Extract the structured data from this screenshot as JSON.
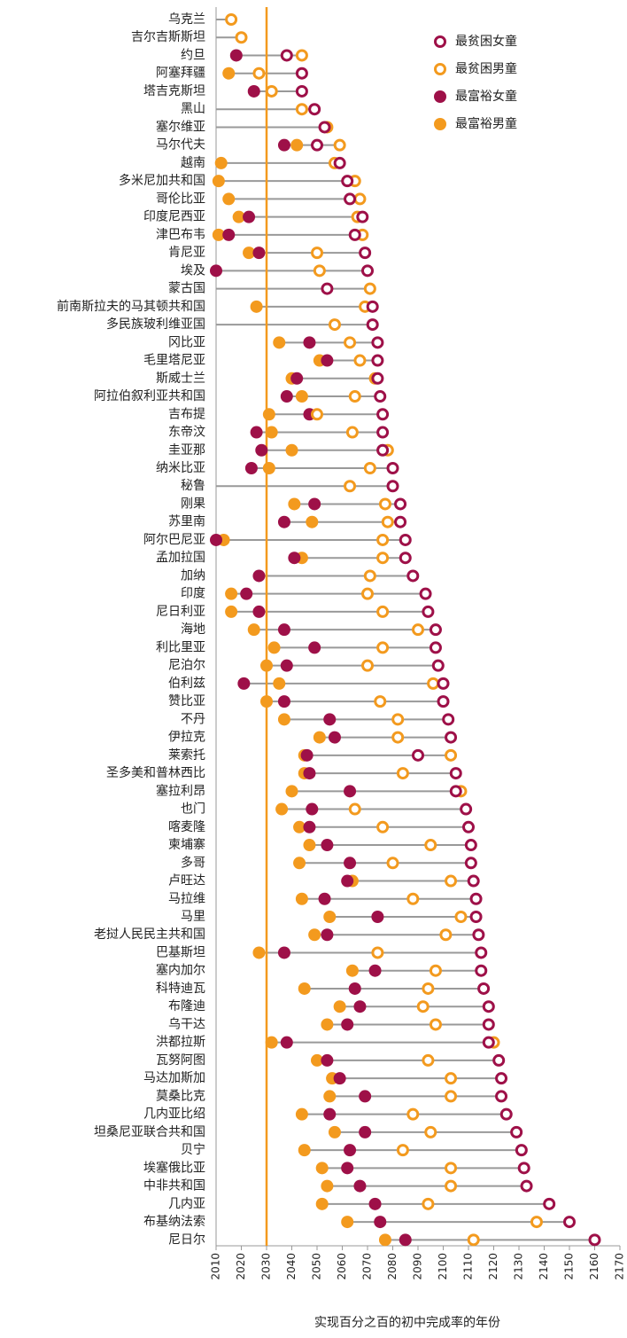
{
  "chart_data": {
    "type": "dot",
    "x_label": "实现百分之百的初中完成率的年份",
    "categories": [
      "乌克兰",
      "吉尔吉斯斯坦",
      "约旦",
      "阿塞拜疆",
      "塔吉克斯坦",
      "黑山",
      "塞尔维亚",
      "马尔代夫",
      "越南",
      "多米尼加共和国",
      "哥伦比亚",
      "印度尼西亚",
      "津巴布韦",
      "肯尼亚",
      "埃及",
      "蒙古国",
      "前南斯拉夫的马其顿共和国",
      "多民族玻利维亚国",
      "冈比亚",
      "毛里塔尼亚",
      "斯威士兰",
      "阿拉伯叙利亚共和国",
      "吉布提",
      "东帝汶",
      "圭亚那",
      "纳米比亚",
      "秘鲁",
      "刚果",
      "苏里南",
      "阿尔巴尼亚",
      "孟加拉国",
      "加纳",
      "印度",
      "尼日利亚",
      "海地",
      "利比里亚",
      "尼泊尔",
      "伯利兹",
      "赞比亚",
      "不丹",
      "伊拉克",
      "莱索托",
      "圣多美和普林西比",
      "塞拉利昂",
      "也门",
      "喀麦隆",
      "柬埔寨",
      "多哥",
      "卢旺达",
      "马拉维",
      "马里",
      "老挝人民民主共和国",
      "巴基斯坦",
      "塞内加尔",
      "科特迪瓦",
      "布隆迪",
      "乌干达",
      "洪都拉斯",
      "瓦努阿图",
      "马达加斯加",
      "莫桑比克",
      "几内亚比绍",
      "坦桑尼亚联合共和国",
      "贝宁",
      "埃塞俄比亚",
      "中非共和国",
      "几内亚",
      "布基纳法索",
      "尼日尔"
    ],
    "series": [
      {
        "name": "最贫困女童",
        "color": "#9e1048",
        "marker": "hollow",
        "values": [
          null,
          null,
          2038,
          2044,
          2044,
          2049,
          2053,
          2050,
          2059,
          2062,
          2063,
          2068,
          2065,
          2069,
          2070,
          2054,
          2072,
          2072,
          2074,
          2074,
          2074,
          2075,
          2076,
          2076,
          2076,
          2080,
          2080,
          2083,
          2083,
          2085,
          2085,
          2088,
          2093,
          2094,
          2097,
          2097,
          2098,
          2100,
          2100,
          2102,
          2103,
          2090,
          2105,
          2105,
          2109,
          2110,
          2111,
          2111,
          2112,
          2113,
          2113,
          2114,
          2115,
          2115,
          2116,
          2118,
          2118,
          2118,
          2122,
          2123,
          2123,
          2125,
          2129,
          2131,
          2132,
          2133,
          2142,
          2150,
          2160
        ]
      },
      {
        "name": "最贫困男童",
        "color": "#f39a1e",
        "marker": "hollow",
        "values": [
          2016,
          2020,
          2044,
          2027,
          2032,
          2044,
          2054,
          2059,
          2057,
          2065,
          2067,
          2066,
          2068,
          2050,
          2051,
          2071,
          2069,
          2057,
          2063,
          2067,
          2073,
          2065,
          2050,
          2064,
          2078,
          2071,
          2063,
          2077,
          2078,
          2076,
          2076,
          2071,
          2070,
          2076,
          2090,
          2076,
          2070,
          2096,
          2075,
          2082,
          2082,
          2103,
          2084,
          2107,
          2065,
          2076,
          2095,
          2080,
          2103,
          2088,
          2107,
          2101,
          2074,
          2097,
          2094,
          2092,
          2097,
          2120,
          2094,
          2103,
          2103,
          2088,
          2095,
          2084,
          2103,
          2103,
          2094,
          2137,
          2112
        ]
      },
      {
        "name": "最富裕女童",
        "color": "#9e1048",
        "marker": "filled",
        "values": [
          null,
          null,
          2018,
          null,
          2025,
          null,
          null,
          2037,
          null,
          null,
          null,
          2023,
          2015,
          2027,
          2010,
          null,
          null,
          null,
          2047,
          2054,
          2042,
          2038,
          2047,
          2026,
          2028,
          2024,
          null,
          2049,
          2037,
          2010,
          2041,
          2027,
          2022,
          2027,
          2037,
          2049,
          2038,
          2021,
          2037,
          2055,
          2057,
          2046,
          2047,
          2063,
          2048,
          2047,
          2054,
          2063,
          2062,
          2053,
          2074,
          2054,
          2037,
          2073,
          2065,
          2067,
          2062,
          2038,
          2054,
          2059,
          2069,
          2055,
          2069,
          2063,
          2062,
          2067,
          2073,
          2075,
          2085
        ]
      },
      {
        "name": "最富裕男童",
        "color": "#f39a1e",
        "marker": "filled",
        "values": [
          null,
          null,
          null,
          2015,
          null,
          null,
          null,
          2042,
          2012,
          2011,
          2015,
          2019,
          2011,
          2023,
          null,
          null,
          2026,
          null,
          2035,
          2051,
          2040,
          2044,
          2031,
          2032,
          2040,
          2031,
          null,
          2041,
          2048,
          2013,
          2044,
          null,
          2016,
          2016,
          2025,
          2033,
          2030,
          2035,
          2030,
          2037,
          2051,
          2045,
          2045,
          2040,
          2036,
          2043,
          2047,
          2043,
          2064,
          2044,
          2055,
          2049,
          2027,
          2064,
          2045,
          2059,
          2054,
          2032,
          2050,
          2056,
          2055,
          2044,
          2057,
          2045,
          2052,
          2054,
          2052,
          2062,
          2077
        ]
      }
    ],
    "reference_x": 2030,
    "reference_color": "#f39a1e",
    "xlim": [
      2010,
      2170
    ],
    "xticks": [
      2010,
      2020,
      2030,
      2040,
      2050,
      2060,
      2070,
      2080,
      2090,
      2100,
      2110,
      2120,
      2130,
      2140,
      2150,
      2160,
      2170
    ],
    "legend": "top-right"
  }
}
